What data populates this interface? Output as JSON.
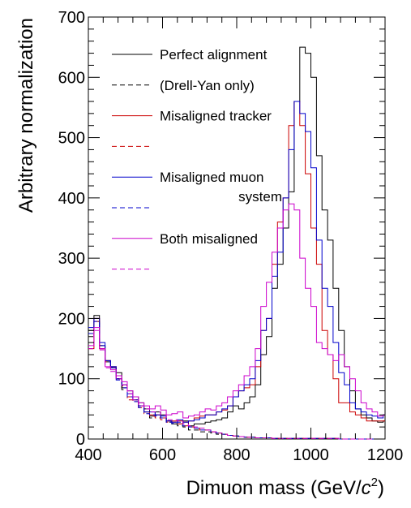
{
  "chart_data": {
    "type": "line",
    "style": "step-histogram",
    "xlabel": "Dimuon mass (GeV/c²)",
    "xlabel_parts": {
      "main": "Dimuon mass (GeV/",
      "italic": "c",
      "sup": "2",
      "close": ")"
    },
    "ylabel": "Arbitrary normalization",
    "xlim": [
      400,
      1200
    ],
    "ylim": [
      0,
      700
    ],
    "xticks": [
      400,
      600,
      800,
      1000,
      1200
    ],
    "yticks": [
      0,
      100,
      200,
      300,
      400,
      500,
      600,
      700
    ],
    "grid": false,
    "legend_position": "top-left",
    "bin_edges": [
      400,
      415,
      430,
      445,
      460,
      475,
      490,
      505,
      520,
      535,
      550,
      565,
      580,
      595,
      610,
      625,
      640,
      655,
      670,
      685,
      700,
      715,
      730,
      745,
      760,
      775,
      790,
      805,
      820,
      835,
      850,
      865,
      880,
      895,
      910,
      925,
      940,
      955,
      970,
      985,
      1000,
      1015,
      1030,
      1045,
      1060,
      1075,
      1090,
      1105,
      1120,
      1135,
      1150,
      1165,
      1180,
      1195,
      1200
    ],
    "series": [
      {
        "name": "Perfect alignment",
        "color": "#000000",
        "dash": "solid",
        "values": [
          180,
          205,
          155,
          130,
          120,
          110,
          85,
          80,
          70,
          60,
          50,
          38,
          45,
          40,
          30,
          25,
          25,
          30,
          22,
          25,
          25,
          28,
          30,
          32,
          35,
          45,
          55,
          50,
          60,
          70,
          90,
          140,
          170,
          250,
          290,
          350,
          410,
          560,
          650,
          640,
          600,
          470,
          380,
          330,
          250,
          180,
          120,
          80,
          50,
          40,
          35,
          30,
          28,
          30
        ]
      },
      {
        "name": "(Drell-Yan only)",
        "color": "#000000",
        "dash": "dashed",
        "values": [
          170,
          195,
          155,
          128,
          118,
          105,
          82,
          70,
          65,
          55,
          45,
          35,
          40,
          35,
          28,
          25,
          22,
          20,
          15,
          15,
          12,
          12,
          10,
          8,
          8,
          6,
          5,
          4,
          3,
          3,
          2,
          2,
          2,
          1,
          1,
          1,
          1,
          1,
          1,
          1,
          1,
          1,
          1,
          1,
          1,
          0,
          0,
          0,
          0,
          0,
          0,
          0,
          0,
          0
        ]
      },
      {
        "name": "Misaligned tracker",
        "color": "#cc0000",
        "dash": "solid",
        "values": [
          150,
          200,
          150,
          130,
          120,
          100,
          90,
          70,
          65,
          55,
          45,
          40,
          40,
          35,
          30,
          30,
          30,
          28,
          30,
          35,
          38,
          40,
          40,
          45,
          48,
          55,
          70,
          80,
          85,
          90,
          120,
          180,
          200,
          290,
          360,
          400,
          520,
          560,
          520,
          440,
          350,
          290,
          180,
          140,
          100,
          60,
          60,
          45,
          40,
          35,
          30,
          30,
          30,
          30
        ]
      },
      {
        "name": "",
        "color": "#cc0000",
        "dash": "dashed",
        "values": [
          150,
          195,
          150,
          128,
          118,
          100,
          88,
          65,
          62,
          52,
          42,
          38,
          35,
          32,
          28,
          28,
          25,
          22,
          20,
          18,
          15,
          15,
          12,
          10,
          8,
          6,
          5,
          4,
          3,
          3,
          2,
          2,
          2,
          1,
          1,
          1,
          1,
          1,
          1,
          1,
          1,
          1,
          1,
          1,
          1,
          0,
          0,
          0,
          0,
          0,
          0,
          0,
          0,
          0
        ]
      },
      {
        "name": "Misaligned muon system",
        "color": "#0000cc",
        "dash": "solid",
        "values": [
          185,
          200,
          160,
          130,
          120,
          100,
          90,
          75,
          65,
          55,
          45,
          45,
          40,
          38,
          30,
          28,
          32,
          28,
          30,
          32,
          35,
          40,
          40,
          45,
          50,
          55,
          70,
          80,
          90,
          100,
          130,
          180,
          200,
          270,
          310,
          400,
          480,
          560,
          540,
          510,
          450,
          330,
          250,
          220,
          160,
          110,
          90,
          60,
          50,
          45,
          40,
          38,
          35,
          40
        ]
      },
      {
        "name": "",
        "color": "#0000cc",
        "dash": "dashed",
        "values": [
          175,
          195,
          155,
          128,
          118,
          98,
          85,
          70,
          62,
          52,
          42,
          40,
          38,
          35,
          28,
          26,
          28,
          22,
          20,
          18,
          15,
          15,
          12,
          10,
          8,
          6,
          5,
          4,
          3,
          3,
          2,
          2,
          2,
          1,
          1,
          1,
          1,
          1,
          1,
          1,
          1,
          1,
          1,
          1,
          1,
          0,
          0,
          0,
          0,
          0,
          0,
          0,
          0,
          0
        ]
      },
      {
        "name": "Both misaligned",
        "color": "#cc00cc",
        "dash": "solid",
        "values": [
          155,
          185,
          150,
          120,
          115,
          105,
          95,
          80,
          70,
          60,
          55,
          50,
          55,
          48,
          40,
          42,
          45,
          35,
          38,
          40,
          45,
          50,
          48,
          55,
          60,
          70,
          80,
          90,
          105,
          120,
          150,
          220,
          260,
          310,
          350,
          380,
          390,
          380,
          300,
          250,
          220,
          160,
          150,
          140,
          130,
          140,
          120,
          100,
          80,
          60,
          50,
          45,
          38,
          40
        ]
      },
      {
        "name": "",
        "color": "#cc00cc",
        "dash": "dashed",
        "values": [
          150,
          180,
          148,
          118,
          112,
          100,
          90,
          75,
          65,
          55,
          50,
          45,
          45,
          40,
          32,
          32,
          30,
          25,
          22,
          20,
          18,
          15,
          12,
          10,
          8,
          6,
          5,
          4,
          3,
          3,
          2,
          2,
          2,
          1,
          1,
          1,
          1,
          1,
          1,
          1,
          1,
          1,
          1,
          1,
          1,
          0,
          0,
          0,
          0,
          0,
          0,
          0,
          0,
          0
        ]
      }
    ],
    "legend": [
      {
        "label": "Perfect alignment",
        "label2": "",
        "color": "#000000",
        "dash": "solid"
      },
      {
        "label": "(Drell-Yan only)",
        "label2": "",
        "color": "#000000",
        "dash": "dashed"
      },
      {
        "label": "Misaligned tracker",
        "label2": "",
        "color": "#cc0000",
        "dash": "solid"
      },
      {
        "label": "",
        "label2": "",
        "color": "#cc0000",
        "dash": "dashed"
      },
      {
        "label": "Misaligned muon",
        "label2": "system",
        "color": "#0000cc",
        "dash": "solid"
      },
      {
        "label": "",
        "label2": "",
        "color": "#0000cc",
        "dash": "dashed"
      },
      {
        "label": "Both misaligned",
        "label2": "",
        "color": "#cc00cc",
        "dash": "solid"
      },
      {
        "label": "",
        "label2": "",
        "color": "#cc00cc",
        "dash": "dashed"
      }
    ]
  }
}
